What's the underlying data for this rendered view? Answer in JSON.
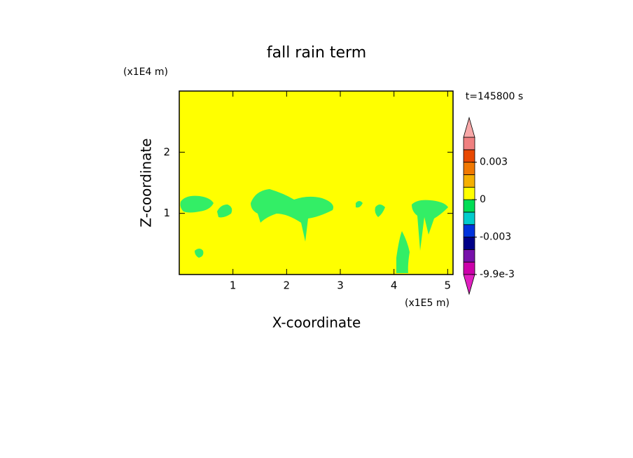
{
  "chart_data": {
    "type": "contour",
    "title": "fall rain term",
    "x_label": "X-coordinate",
    "y_label": "Z-coordinate",
    "x_unit": "(x1E5 m)",
    "y_unit": "(x1E4 m)",
    "annotation": "t=145800 s",
    "xlim": [
      0,
      5.1
    ],
    "ylim": [
      0,
      3
    ],
    "xticks": [
      1,
      2,
      3,
      4,
      5
    ],
    "yticks": [
      1,
      2
    ],
    "background_color": "#ffff00",
    "region_color": "#33ee66",
    "colorbar": {
      "levels": [
        -0.0099,
        -0.006,
        -0.004,
        -0.003,
        -0.002,
        -0.001,
        0,
        0.001,
        0.002,
        0.003,
        0.004,
        0.006
      ],
      "colors": [
        "#cc00aa",
        "#7711aa",
        "#000088",
        "#0033dd",
        "#00cccc",
        "#00dd55",
        "#ffff00",
        "#f5b000",
        "#f07800",
        "#e84800",
        "#f08080"
      ],
      "under_color": "#e020c0",
      "over_color": "#f8a8a8",
      "ticks": [
        {
          "value": -0.0099,
          "label": "-9.9e-3"
        },
        -0.003,
        0,
        0.003
      ]
    }
  }
}
